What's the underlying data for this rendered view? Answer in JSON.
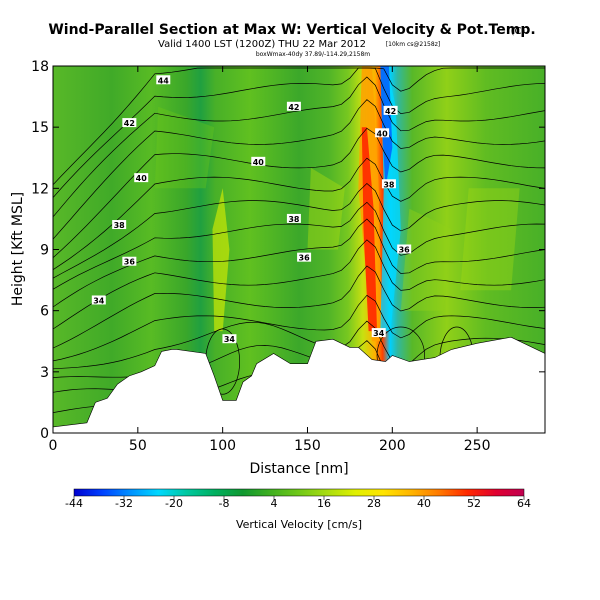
{
  "chart_data": {
    "type": "heatmap",
    "title": "Wind-Parallel Section at Max W: Vertical Velocity & Pot.Temp.",
    "title_mark": "(C)",
    "subtitle": "Valid 1400 LST (1200Z) THU 22 Mar 2012",
    "subtitle_note": "[10km cs@2158z]",
    "subtitle2": "boxWmax-40dy 37.89/-114.29,2158m",
    "xlabel": "Distance [nm]",
    "ylabel": "Height [Kft MSL]",
    "xlim": [
      0,
      290
    ],
    "ylim": [
      0,
      18
    ],
    "x_ticks": [
      0,
      50,
      100,
      150,
      200,
      250
    ],
    "y_ticks": [
      0,
      3,
      6,
      9,
      12,
      15,
      18
    ],
    "grid": false,
    "colorbar": {
      "label": "Vertical Velocity [cm/s]",
      "tick_labels": [
        "-44",
        "-32",
        "-20",
        "-8",
        "4",
        "16",
        "28",
        "40",
        "52",
        "64"
      ],
      "colors": [
        "#0000d0",
        "#0040ff",
        "#0090ff",
        "#00d8ff",
        "#00c8a0",
        "#00b060",
        "#109830",
        "#40b020",
        "#70c818",
        "#a8dc10",
        "#e0f000",
        "#ffe400",
        "#ffb400",
        "#ff7800",
        "#ff2800",
        "#e00030",
        "#c00050"
      ]
    },
    "terrain": {
      "x": [
        0,
        20,
        25,
        32,
        38,
        45,
        52,
        60,
        64,
        70,
        73,
        90,
        95,
        100,
        102,
        108,
        112,
        117,
        120,
        130,
        140,
        150,
        155,
        165,
        175,
        180,
        188,
        196,
        200,
        210,
        225,
        235,
        250,
        270,
        290
      ],
      "y": [
        0.3,
        0.5,
        1.5,
        1.7,
        2.4,
        2.8,
        3.0,
        3.3,
        4.0,
        4.1,
        4.1,
        3.9,
        2.8,
        1.6,
        1.6,
        1.6,
        2.5,
        2.8,
        3.4,
        3.9,
        3.4,
        3.4,
        4.5,
        4.6,
        4.2,
        4.2,
        3.6,
        3.5,
        3.8,
        3.5,
        3.7,
        4.1,
        4.4,
        4.7,
        3.9
      ]
    },
    "contour_labels": [
      {
        "text": "44",
        "x": 65,
        "y": 17.3
      },
      {
        "text": "42",
        "x": 142,
        "y": 16.0
      },
      {
        "text": "42",
        "x": 45,
        "y": 15.2
      },
      {
        "text": "42",
        "x": 199,
        "y": 15.8
      },
      {
        "text": "40",
        "x": 194,
        "y": 14.7
      },
      {
        "text": "40",
        "x": 121,
        "y": 13.3
      },
      {
        "text": "40",
        "x": 52,
        "y": 12.5
      },
      {
        "text": "38",
        "x": 198,
        "y": 12.2
      },
      {
        "text": "38",
        "x": 142,
        "y": 10.5
      },
      {
        "text": "38",
        "x": 39,
        "y": 10.2
      },
      {
        "text": "36",
        "x": 207,
        "y": 9.0
      },
      {
        "text": "36",
        "x": 148,
        "y": 8.6
      },
      {
        "text": "36",
        "x": 45,
        "y": 8.4
      },
      {
        "text": "34",
        "x": 27,
        "y": 6.5
      },
      {
        "text": "34",
        "x": 104,
        "y": 4.6
      },
      {
        "text": "34",
        "x": 192,
        "y": 4.9
      }
    ]
  }
}
